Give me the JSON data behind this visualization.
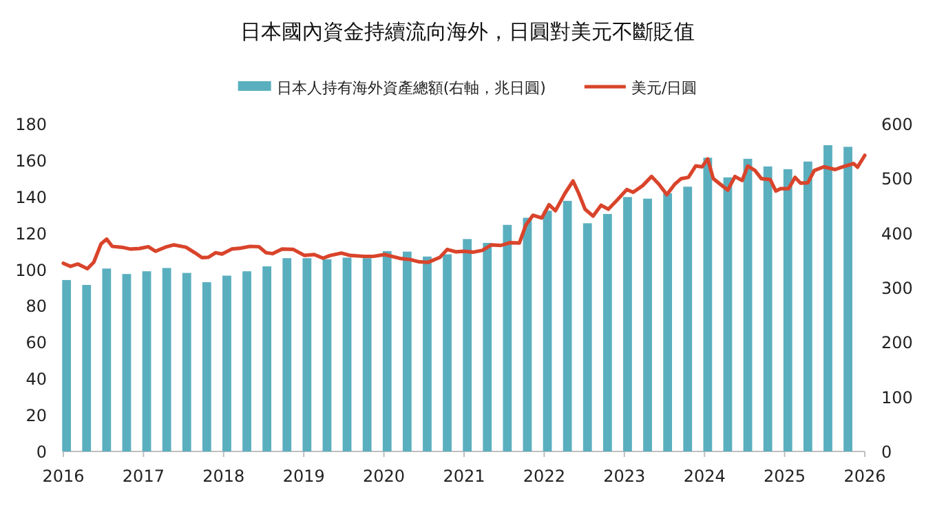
{
  "chart_data": {
    "type": "line",
    "title": "日本國內資金持續流向海外，日圓對美元不斷貶值",
    "legend": "top",
    "xlim": [
      2016,
      2026
    ],
    "xticks": [
      2016,
      2017,
      2018,
      2019,
      2020,
      2021,
      2022,
      2023,
      2024,
      2025,
      2026
    ],
    "ylim": [
      0,
      180
    ],
    "yticks": [
      0,
      20,
      40,
      60,
      80,
      100,
      120,
      140,
      160,
      180
    ],
    "y2lim": [
      0,
      600
    ],
    "y2ticks": [
      0,
      100,
      200,
      300,
      400,
      500,
      600
    ],
    "series": [
      {
        "name": "日本人持有海外資產總額(右軸，兆日圓)",
        "type": "bar",
        "axis": "y2",
        "color": "#5aafbf",
        "x": [
          2016.04,
          2016.29,
          2016.54,
          2016.79,
          2017.04,
          2017.29,
          2017.54,
          2017.79,
          2018.04,
          2018.29,
          2018.54,
          2018.79,
          2019.04,
          2019.29,
          2019.54,
          2019.79,
          2020.04,
          2020.29,
          2020.54,
          2020.79,
          2021.04,
          2021.29,
          2021.54,
          2021.79,
          2022.04,
          2022.29,
          2022.54,
          2022.79,
          2023.04,
          2023.29,
          2023.54,
          2023.79,
          2024.04,
          2024.29,
          2024.54,
          2024.79,
          2025.04,
          2025.29,
          2025.54,
          2025.79
        ],
        "values": [
          314,
          305,
          335,
          325,
          330,
          336,
          327,
          310,
          322,
          330,
          339,
          354,
          354,
          352,
          355,
          354,
          367,
          366,
          357,
          361,
          389,
          382,
          415,
          428,
          441,
          459,
          418,
          435,
          466,
          463,
          473,
          485,
          538,
          502,
          536,
          522,
          517,
          531,
          561,
          558
        ]
      },
      {
        "name": "美元/日圓",
        "color": "#d9442b",
        "x": [
          2016.0,
          2016.09,
          2016.18,
          2016.3,
          2016.38,
          2016.47,
          2016.54,
          2016.61,
          2016.73,
          2016.84,
          2016.95,
          2017.06,
          2017.15,
          2017.27,
          2017.38,
          2017.53,
          2017.64,
          2017.73,
          2017.81,
          2017.9,
          2017.98,
          2018.1,
          2018.21,
          2018.33,
          2018.44,
          2018.53,
          2018.61,
          2018.73,
          2018.87,
          2019.01,
          2019.13,
          2019.24,
          2019.33,
          2019.47,
          2019.58,
          2019.75,
          2019.87,
          2020.01,
          2020.1,
          2020.21,
          2020.33,
          2020.44,
          2020.55,
          2020.7,
          2020.79,
          2020.9,
          2021.0,
          2021.11,
          2021.23,
          2021.34,
          2021.46,
          2021.57,
          2021.69,
          2021.77,
          2021.86,
          2021.97,
          2022.06,
          2022.14,
          2022.26,
          2022.36,
          2022.43,
          2022.51,
          2022.61,
          2022.71,
          2022.8,
          2022.91,
          2023.03,
          2023.11,
          2023.23,
          2023.34,
          2023.43,
          2023.53,
          2023.63,
          2023.71,
          2023.8,
          2023.89,
          2023.97,
          2024.04,
          2024.11,
          2024.21,
          2024.29,
          2024.38,
          2024.47,
          2024.54,
          2024.63,
          2024.71,
          2024.82,
          2024.89,
          2024.95,
          2025.05,
          2025.13,
          2025.2,
          2025.29,
          2025.37,
          2025.49,
          2025.63,
          2025.71,
          2025.86,
          2025.91,
          2026.0
        ],
        "values": [
          103.4,
          101.7,
          103,
          100.4,
          104,
          114,
          116.7,
          112.7,
          112.2,
          111.2,
          111.5,
          112.5,
          110,
          112.2,
          113.5,
          112.2,
          109.2,
          106.5,
          106.7,
          109.2,
          108.5,
          111.2,
          111.7,
          112.7,
          112.5,
          109.2,
          108.7,
          111.2,
          111,
          107.7,
          108.2,
          106.2,
          107.7,
          109,
          107.7,
          107.2,
          107.2,
          108.2,
          107.2,
          106,
          105.4,
          104.2,
          103.9,
          106.7,
          111,
          109.7,
          110,
          109.5,
          110.5,
          113.5,
          113.2,
          114.7,
          114.5,
          124.3,
          129.8,
          128.3,
          135.6,
          132.3,
          141.9,
          148.6,
          141.9,
          133.1,
          129.3,
          135.3,
          133.1,
          138.1,
          143.9,
          142.4,
          146.1,
          151.1,
          146.9,
          141.1,
          146.9,
          149.9,
          150.6,
          156.9,
          156.4,
          160.7,
          149.9,
          146.4,
          143.6,
          151.1,
          148.9,
          156.9,
          154.4,
          149.9,
          149.4,
          143.1,
          144.4,
          144.4,
          150.6,
          147.4,
          147.6,
          154.4,
          156.4,
          154.9,
          156.2,
          158.2,
          156.2,
          162.7
        ]
      }
    ]
  }
}
